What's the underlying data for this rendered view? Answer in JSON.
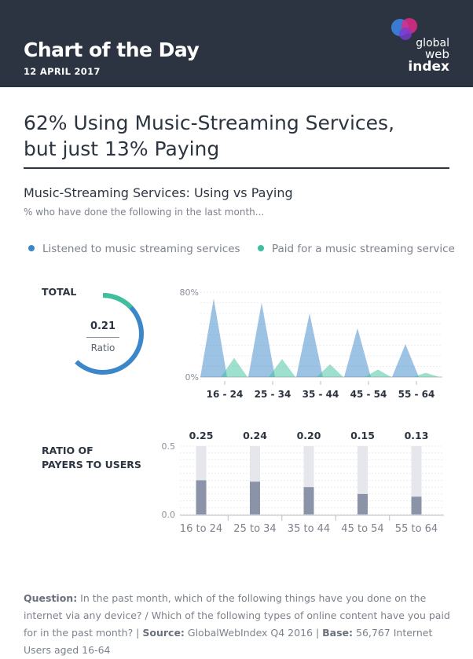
{
  "header": {
    "title": "Chart of the Day",
    "date": "12 APRIL 2017",
    "logo_line1": "global",
    "logo_line2": "web",
    "logo_line3": "index"
  },
  "headline": {
    "line1": "62% Using Music-Streaming Services,",
    "line2": "but just 13% Paying"
  },
  "chart_title": "Music-Streaming Services: Using vs Paying",
  "chart_subtitle": "% who have done the following in the last month...",
  "legend": [
    {
      "label": "Listened to music streaming services",
      "color": "#3b87c9"
    },
    {
      "label": "Paid for a music streaming service",
      "color": "#3fbf9b"
    }
  ],
  "total": {
    "label": "TOTAL",
    "ratio_value": "0.21",
    "ratio_label": "Ratio",
    "listened_pct": 62,
    "paid_pct": 13
  },
  "ratio_section_label_line1": "RATIO OF",
  "ratio_section_label_line2": "PAYERS TO USERS",
  "chart_data": [
    {
      "type": "area",
      "categories": [
        "16 - 24",
        "25 - 34",
        "35 - 44",
        "45 - 54",
        "55 - 64"
      ],
      "series": [
        {
          "name": "Listened to music streaming services",
          "values": [
            74,
            70,
            60,
            46,
            31
          ],
          "color": "#3b87c9"
        },
        {
          "name": "Paid for a music streaming service",
          "values": [
            18,
            17,
            12,
            7,
            4
          ],
          "color": "#3fbf9b"
        }
      ],
      "ylim": [
        0,
        80
      ],
      "ytick_labels": [
        "80%",
        "0%"
      ],
      "grid": true
    },
    {
      "type": "bar",
      "categories": [
        "16 to 24",
        "25 to 34",
        "35 to 44",
        "45 to 54",
        "55 to 64"
      ],
      "values": [
        0.25,
        0.24,
        0.2,
        0.15,
        0.13
      ],
      "value_labels": [
        "0.25",
        "0.24",
        "0.20",
        "0.15",
        "0.13"
      ],
      "ylim": [
        0,
        0.5
      ],
      "ytick_labels": [
        "0.5",
        "0.0"
      ],
      "bar_color": "#8a93a7",
      "track_color": "#e6e7ec"
    }
  ],
  "footer": {
    "question_label": "Question:",
    "question_text": " In the past month, which of the following things have you done on the internet via any device? / Which of the following types of online content have you paid for in the past month?",
    "sep1": " | ",
    "source_label": "Source:",
    "source_text": " GlobalWebIndex Q4 2016",
    "sep2": " | ",
    "base_label": "Base:",
    "base_text": " 56,767 Internet Users aged 16-64"
  }
}
